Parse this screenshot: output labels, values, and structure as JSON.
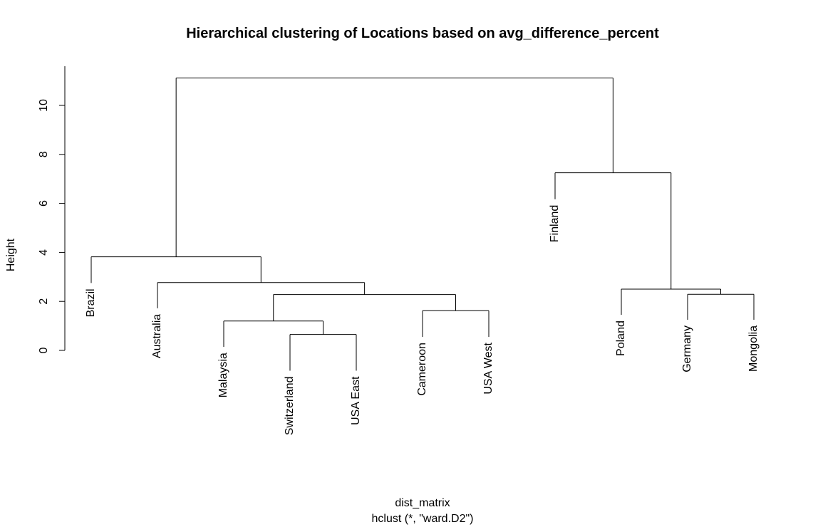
{
  "chart_data": {
    "type": "dendrogram",
    "title": "Hierarchical clustering of Locations based on avg_difference_percent",
    "ylabel": "Height",
    "xlabel": "dist_matrix",
    "sub": "hclust (*, \"ward.D2\")",
    "ylim": [
      0,
      11.6
    ],
    "yticks": [
      0,
      2,
      4,
      6,
      8,
      10
    ],
    "leaves": [
      {
        "label": "Brazil",
        "top": 2.75
      },
      {
        "label": "Australia",
        "top": 1.72
      },
      {
        "label": "Malaysia",
        "top": 0.14
      },
      {
        "label": "Switzerland",
        "top": -0.83
      },
      {
        "label": "USA East",
        "top": -0.83
      },
      {
        "label": "Cameroon",
        "top": 0.55
      },
      {
        "label": "USA West",
        "top": 0.55
      },
      {
        "label": "Finland",
        "top": 6.17
      },
      {
        "label": "Poland",
        "top": 1.45
      },
      {
        "label": "Germany",
        "top": 1.25
      },
      {
        "label": "Mongolia",
        "top": 1.25
      }
    ],
    "merges": [
      {
        "left": "L3",
        "right": "L4",
        "height": 0.65
      },
      {
        "left": "L2",
        "right": "M0",
        "height": 1.2
      },
      {
        "left": "L5",
        "right": "L6",
        "height": 1.62
      },
      {
        "left": "M1",
        "right": "M2",
        "height": 2.28
      },
      {
        "left": "L9",
        "right": "L10",
        "height": 2.29
      },
      {
        "left": "L8",
        "right": "M4",
        "height": 2.5
      },
      {
        "left": "L1",
        "right": "M3",
        "height": 2.77
      },
      {
        "left": "L0",
        "right": "M6",
        "height": 3.82
      },
      {
        "left": "L7",
        "right": "M5",
        "height": 7.25
      },
      {
        "left": "M7",
        "right": "M8",
        "height": 11.12
      }
    ]
  }
}
